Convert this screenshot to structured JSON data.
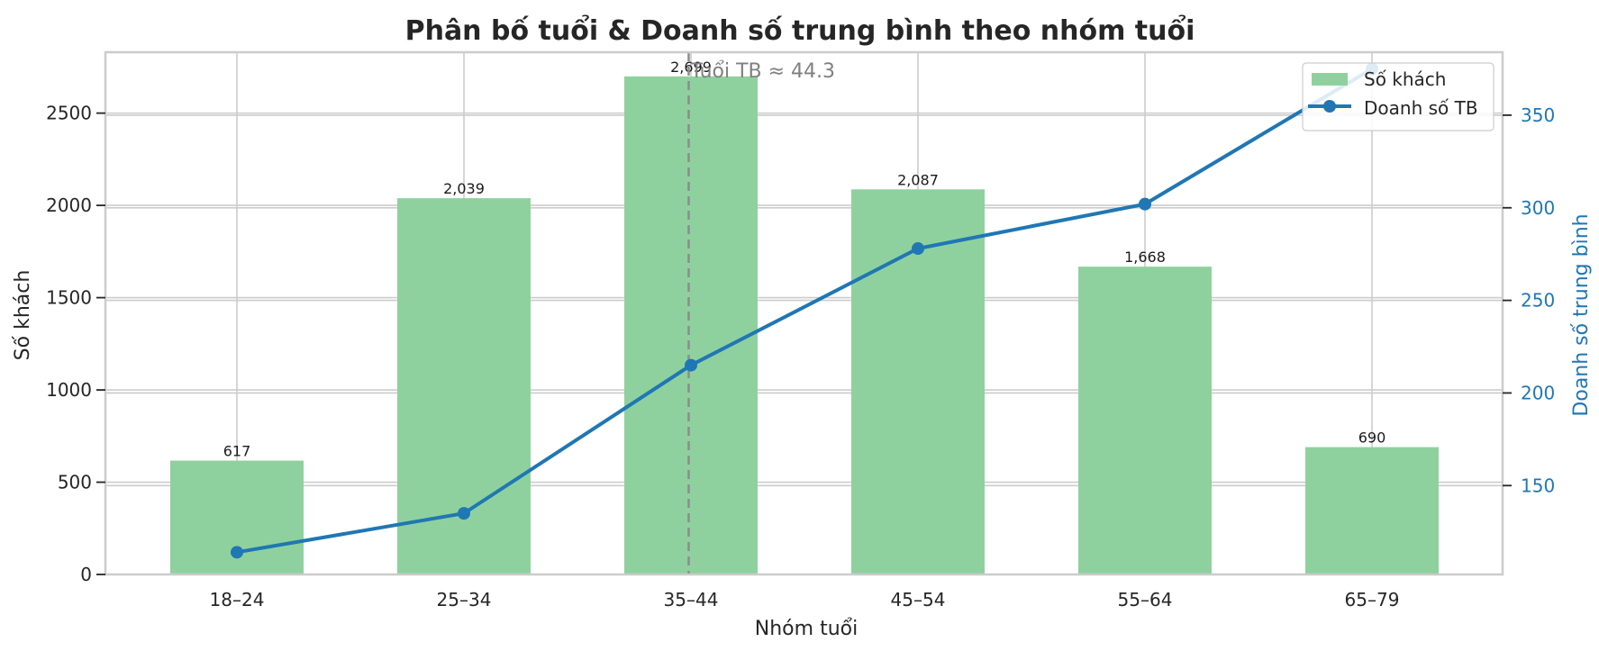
{
  "chart_data": {
    "type": "bar",
    "title": "Phân bố tuổi & Doanh số trung bình theo nhóm tuổi",
    "xlabel": "Nhóm tuổi",
    "ylabel": "Số khách",
    "y2label": "Doanh số trung bình",
    "categories": [
      "18–24",
      "25–34",
      "35–44",
      "45–54",
      "55–64",
      "65–79"
    ],
    "ylim": [
      0,
      2830
    ],
    "yticks": [
      0,
      500,
      1000,
      1500,
      2000,
      2500
    ],
    "y2lim": [
      102,
      384
    ],
    "y2ticks": [
      150,
      200,
      250,
      300,
      350
    ],
    "series": [
      {
        "name": "Số khách",
        "kind": "bar",
        "axis": "left",
        "color": "#8fd19e",
        "values": [
          617,
          2039,
          2699,
          2087,
          1668,
          690
        ],
        "labels": [
          "617",
          "2,039",
          "2,699",
          "2,087",
          "1,668",
          "690"
        ]
      },
      {
        "name": "Doanh số TB",
        "kind": "line",
        "axis": "right",
        "color": "#1f77b4",
        "values": [
          114,
          135,
          215,
          278,
          302,
          375
        ]
      }
    ],
    "annotation": {
      "text": "Tuổi TB ≈ 44.3",
      "x_position": 1.99,
      "line_style": "dashed",
      "color": "#8c8c8c"
    },
    "grid": true,
    "legend_position": "top-right"
  }
}
